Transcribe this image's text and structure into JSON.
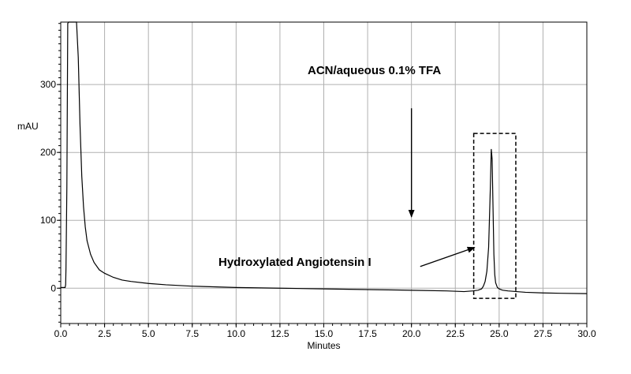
{
  "chart_data": {
    "type": "line",
    "title": "",
    "xlabel": "Minutes",
    "ylabel": "mAU",
    "xlim": [
      0,
      30
    ],
    "ylim": [
      -52,
      392
    ],
    "grid": true,
    "x_ticks": [
      0,
      2.5,
      5,
      7.5,
      10,
      12.5,
      15,
      17.5,
      20,
      22.5,
      25,
      27.5,
      30
    ],
    "x_tick_labels": [
      "0.0",
      "2.5",
      "5.0",
      "7.5",
      "10.0",
      "12.5",
      "15.0",
      "17.5",
      "20.0",
      "22.5",
      "25.0",
      "27.5",
      "30.0"
    ],
    "y_ticks": [
      0,
      100,
      200,
      300
    ],
    "y_tick_labels": [
      "0",
      "100",
      "200",
      "300"
    ],
    "line_color": "#000000",
    "grid_color": "#b0b0b0",
    "series": [
      {
        "x": [
          0,
          0.25,
          0.28,
          0.3,
          0.35,
          0.4,
          0.45,
          0.5,
          0.55,
          0.6,
          0.7,
          0.8,
          0.9,
          1.0,
          1.1,
          1.2,
          1.3,
          1.4,
          1.5,
          1.7,
          1.9,
          2.2,
          2.5,
          3.0,
          3.5,
          4.0,
          5.0,
          6.0,
          7.5,
          10.0,
          12.5,
          15.0,
          17.5,
          20.0,
          22.0,
          23.0,
          23.5,
          23.8,
          24.0,
          24.1,
          24.2,
          24.3,
          24.4,
          24.5,
          24.55,
          24.6,
          24.65,
          24.7,
          24.75,
          24.8,
          24.9,
          25.0,
          25.2,
          25.5,
          26.0,
          26.5,
          27.5,
          28.5,
          30.0
        ],
        "y": [
          1,
          1,
          5,
          30,
          150,
          390,
          392,
          392,
          392,
          392,
          392,
          392,
          392,
          340,
          240,
          165,
          120,
          90,
          70,
          50,
          38,
          27,
          22,
          16,
          12,
          10,
          7,
          5,
          3,
          1,
          0,
          -1,
          -2,
          -3,
          -4,
          -5,
          -4,
          -3,
          -1,
          3,
          10,
          25,
          60,
          150,
          205,
          190,
          120,
          50,
          20,
          8,
          1,
          -1,
          -3,
          -4,
          -5,
          -6,
          -7,
          -7.5,
          -8
        ]
      }
    ],
    "annotations": [
      {
        "text": "ACN/aqueous 0.1% TFA",
        "type": "arrow",
        "from": [
          20,
          265
        ],
        "to": [
          20,
          105
        ]
      },
      {
        "text": "Hydroxylated Angiotensin I",
        "type": "arrow",
        "from": [
          20.5,
          32
        ],
        "to": [
          23.6,
          60
        ]
      },
      {
        "text": "",
        "type": "dashed-box",
        "x0": 23.55,
        "x1": 25.95,
        "y0": -15,
        "y1": 228
      }
    ]
  }
}
